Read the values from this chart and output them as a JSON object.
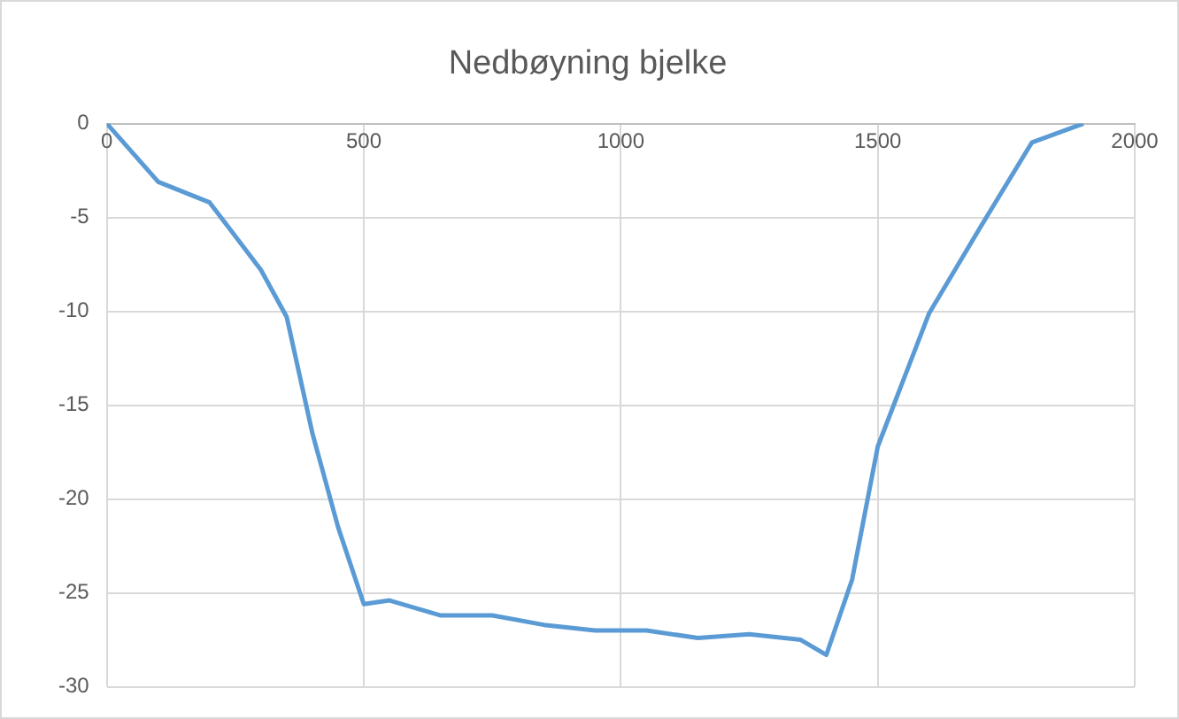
{
  "chart_data": {
    "type": "line",
    "title": "Nedbøyning bjelke",
    "x": [
      0,
      100,
      200,
      300,
      350,
      400,
      450,
      500,
      550,
      650,
      750,
      850,
      950,
      1050,
      1150,
      1250,
      1350,
      1400,
      1450,
      1500,
      1600,
      1700,
      1800,
      1900
    ],
    "series": [
      {
        "color": "#5b9bd5",
        "values": [
          0,
          -3.1,
          -4.2,
          -7.8,
          -10.3,
          -16.5,
          -21.5,
          -25.6,
          -25.4,
          -26.2,
          -26.2,
          -26.7,
          -27,
          -27,
          -27.4,
          -27.2,
          -27.5,
          -28.3,
          -24.3,
          -17.2,
          -10.1,
          -5.5,
          -1,
          0
        ]
      }
    ],
    "xlim": [
      0,
      2000
    ],
    "xticks": [
      0,
      500,
      1000,
      1500,
      2000
    ],
    "ylim": [
      -30,
      0
    ],
    "yticks": [
      -30,
      -25,
      -20,
      -15,
      -10,
      -5,
      0
    ],
    "grid": true,
    "marker": "none",
    "line_style": "solid"
  }
}
